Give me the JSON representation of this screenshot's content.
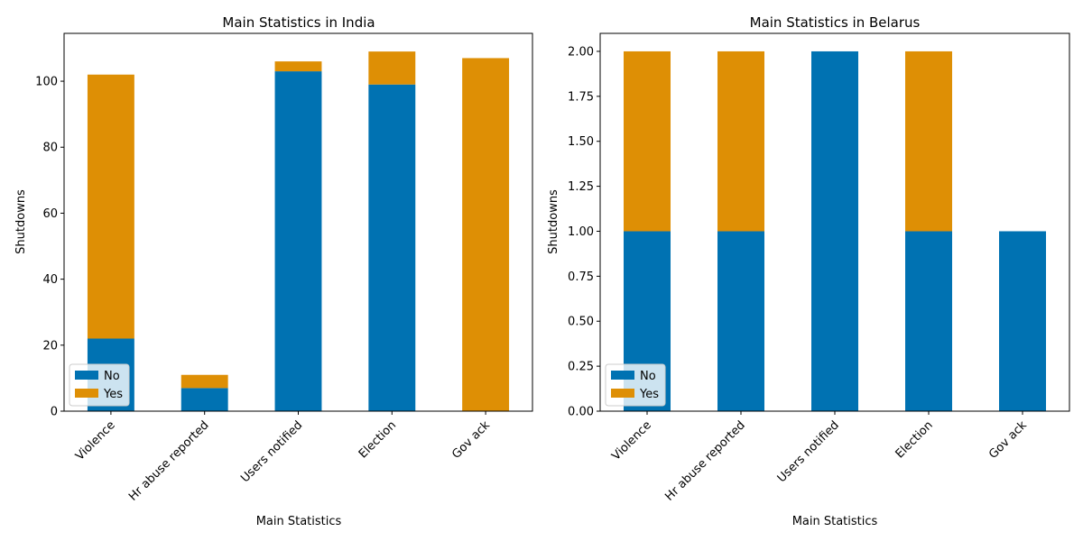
{
  "colors": {
    "No": "#0072b2",
    "Yes": "#de8f05"
  },
  "chart_data": [
    {
      "type": "bar",
      "stacked": true,
      "title": "Main Statistics in India",
      "xlabel": "Main Statistics",
      "ylabel": "Shutdowns",
      "categories": [
        "Violence",
        "Hr abuse reported",
        "Users notified",
        "Election",
        "Gov ack"
      ],
      "series": [
        {
          "name": "No",
          "values": [
            22,
            7,
            103,
            99,
            0
          ]
        },
        {
          "name": "Yes",
          "values": [
            80,
            4,
            3,
            10,
            107
          ]
        }
      ],
      "ylim": [
        0,
        114.5
      ],
      "yticks": [
        0,
        20,
        40,
        60,
        80,
        100
      ],
      "ytick_labels": [
        "0",
        "20",
        "40",
        "60",
        "80",
        "100"
      ],
      "legend": "lower-left",
      "grid": false
    },
    {
      "type": "bar",
      "stacked": true,
      "title": "Main Statistics in Belarus",
      "xlabel": "Main Statistics",
      "ylabel": "Shutdowns",
      "categories": [
        "Violence",
        "Hr abuse reported",
        "Users notified",
        "Election",
        "Gov ack"
      ],
      "series": [
        {
          "name": "No",
          "values": [
            1,
            1,
            2,
            1,
            1
          ]
        },
        {
          "name": "Yes",
          "values": [
            1,
            1,
            0,
            1,
            0
          ]
        }
      ],
      "ylim": [
        0,
        2.1
      ],
      "yticks": [
        0,
        0.25,
        0.5,
        0.75,
        1.0,
        1.25,
        1.5,
        1.75,
        2.0
      ],
      "ytick_labels": [
        "0.00",
        "0.25",
        "0.50",
        "0.75",
        "1.00",
        "1.25",
        "1.50",
        "1.75",
        "2.00"
      ],
      "legend": "lower-left",
      "grid": false
    }
  ]
}
